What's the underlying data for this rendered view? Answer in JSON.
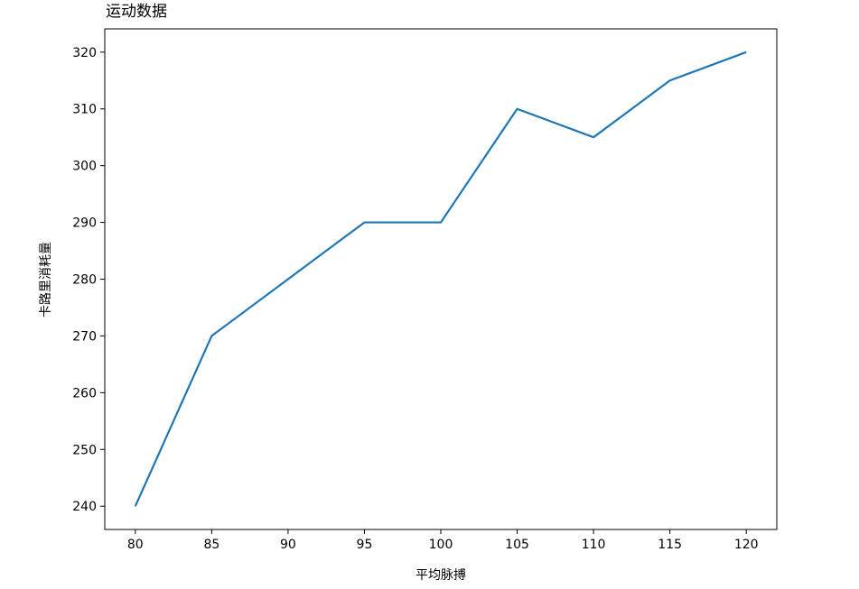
{
  "chart_data": {
    "type": "line",
    "title": "运动数据",
    "xlabel": "平均脉搏",
    "ylabel": "卡路里消耗量",
    "x": [
      80,
      85,
      90,
      95,
      100,
      105,
      110,
      115,
      120
    ],
    "series": [
      {
        "values": [
          240,
          270,
          280,
          290,
          290,
          310,
          305,
          315,
          320
        ],
        "color": "#1f77b4"
      }
    ],
    "xlim": [
      78,
      122
    ],
    "ylim": [
      235.9,
      324.1
    ],
    "xticks": [
      80,
      85,
      90,
      95,
      100,
      105,
      110,
      115,
      120
    ],
    "yticks": [
      240,
      250,
      260,
      270,
      280,
      290,
      300,
      310,
      320
    ],
    "grid": false,
    "title_align": "left"
  }
}
